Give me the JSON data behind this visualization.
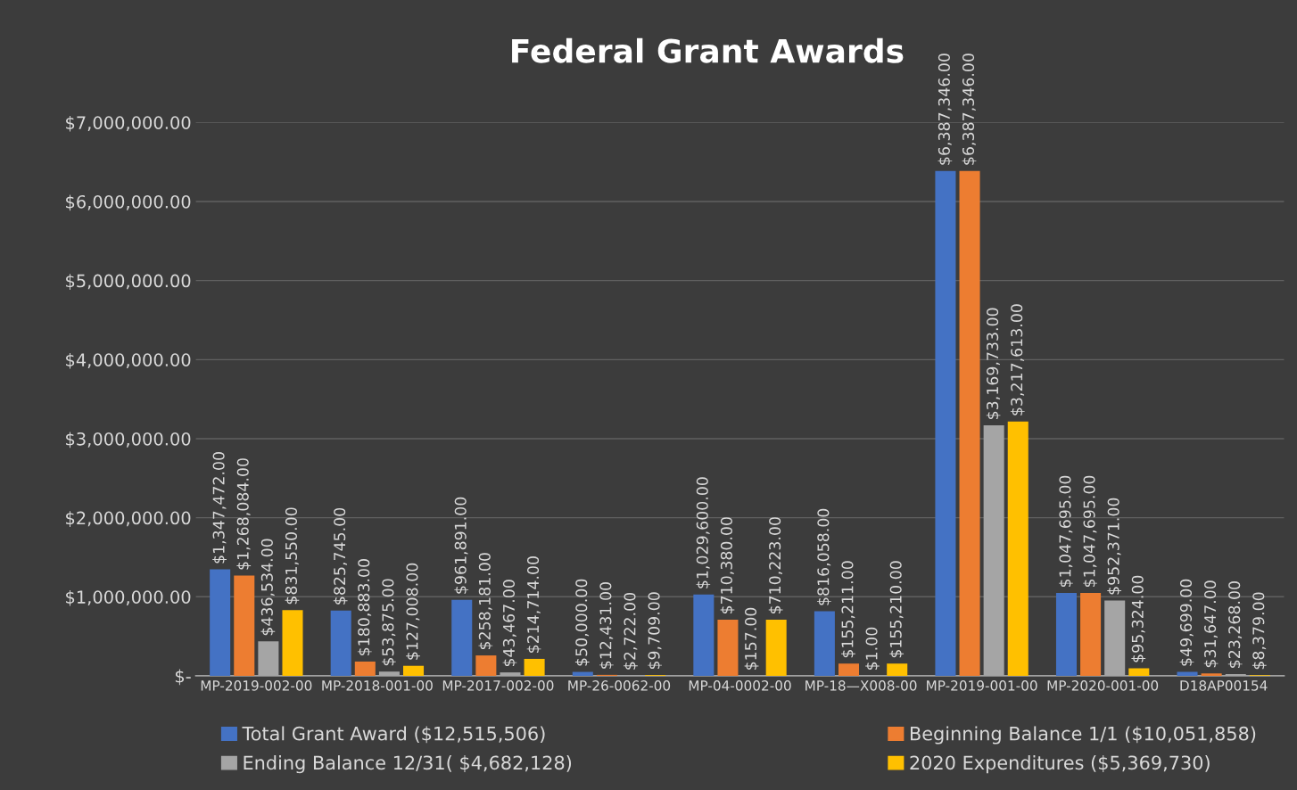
{
  "chart_data": {
    "type": "bar",
    "title": "Federal Grant Awards",
    "categories": [
      "MP-2019-002-00",
      "MP-2018-001-00",
      "MP-2017-002-00",
      "MP-26-0062-00",
      "MP-04-0002-00",
      "MP-18—X008-00",
      "MP-2019-001-00",
      "MP-2020-001-00",
      "D18AP00154"
    ],
    "series": [
      {
        "name": "Total Grant Award ($12,515,506)",
        "color": "#4472c4",
        "values": [
          1347472,
          825745,
          961891,
          50000,
          1029600,
          816058,
          6387346,
          1047695,
          49699
        ],
        "value_labels": [
          "$1,347,472.00",
          "$825,745.00",
          "$961,891.00",
          "$50,000.00",
          "$1,029,600.00",
          "$816,058.00",
          "$6,387,346.00",
          "$1,047,695.00",
          "$49,699.00"
        ]
      },
      {
        "name": "Beginning Balance 1/1 ($10,051,858)",
        "color": "#ed7d31",
        "values": [
          1268084,
          180883,
          258181,
          12431,
          710380,
          155211,
          6387346,
          1047695,
          31647
        ],
        "value_labels": [
          "$1,268,084.00",
          "$180,883.00",
          "$258,181.00",
          "$12,431.00",
          "$710,380.00",
          "$155,211.00",
          "$6,387,346.00",
          "$1,047,695.00",
          "$31,647.00"
        ]
      },
      {
        "name": "Ending Balance 12/31( $4,682,128)",
        "color": "#a5a5a5",
        "values": [
          436534,
          53875,
          43467,
          2722,
          157,
          1,
          3169733,
          952371,
          23268
        ],
        "value_labels": [
          "$436,534.00",
          "$53,875.00",
          "$43,467.00",
          "$2,722.00",
          "$157.00",
          "$1.00",
          "$3,169,733.00",
          "$952,371.00",
          "$23,268.00"
        ]
      },
      {
        "name": "2020 Expenditures ($5,369,730)",
        "color": "#ffc000",
        "values": [
          831550,
          127008,
          214714,
          9709,
          710223,
          155210,
          3217613,
          95324,
          8379
        ],
        "value_labels": [
          "$831,550.00",
          "$127,008.00",
          "$214,714.00",
          "$9,709.00",
          "$710,223.00",
          "$155,210.00",
          "$3,217,613.00",
          "$95,324.00",
          "$8,379.00"
        ]
      }
    ],
    "ylim": [
      0,
      7000000
    ],
    "yticks": [
      {
        "value": 0,
        "label": "$-"
      },
      {
        "value": 1000000,
        "label": "$1,000,000.00"
      },
      {
        "value": 2000000,
        "label": "$2,000,000.00"
      },
      {
        "value": 3000000,
        "label": "$3,000,000.00"
      },
      {
        "value": 4000000,
        "label": "$4,000,000.00"
      },
      {
        "value": 5000000,
        "label": "$5,000,000.00"
      },
      {
        "value": 6000000,
        "label": "$6,000,000.00"
      },
      {
        "value": 7000000,
        "label": "$7,000,000.00"
      }
    ],
    "grid": "y",
    "legend": "bottom"
  }
}
